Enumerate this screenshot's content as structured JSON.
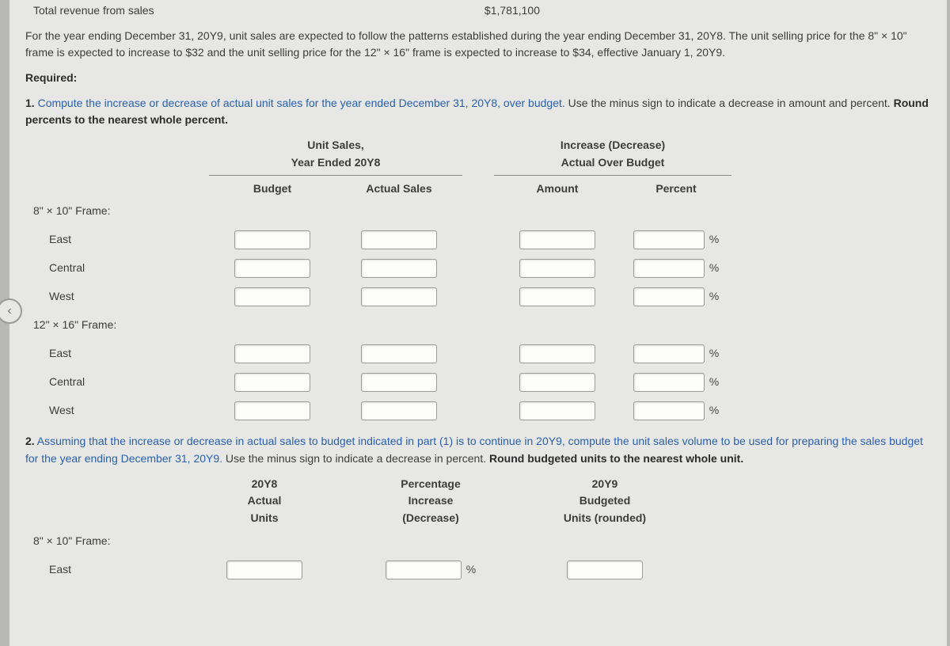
{
  "colors": {
    "page_bg": "#e7e8e6",
    "app_bg": "#b8b8b6",
    "text": "#3c3c3c",
    "link": "#2a5fb0",
    "input_border": "#9c9c9c",
    "input_bg": "#fdfdfc",
    "rule": "#8a8a8a"
  },
  "top": {
    "rev_label": "Total revenue from sales",
    "rev_value": "$1,781,100",
    "paragraph": "For the year ending December 31, 20Y9, unit sales are expected to follow the patterns established during the year ending December 31, 20Y8. The unit selling price for the 8\" × 10\" frame is expected to increase to $32 and the unit selling price for the 12\" × 16\" frame is expected to increase to $34, effective January 1, 20Y9.",
    "required_label": "Required:"
  },
  "q1": {
    "prompt_lead": "1.",
    "prompt_link": " Compute the increase or decrease of actual unit sales for the year ended December 31, 20Y8, over budget.",
    "prompt_tail": " Use the minus sign to indicate a decrease in amount and percent. ",
    "prompt_bold": "Round percents to the nearest whole percent.",
    "hdr_group_a_line1": "Unit Sales,",
    "hdr_group_a_line2": "Year Ended 20Y8",
    "hdr_group_b_line1": "Increase (Decrease)",
    "hdr_group_b_line2": "Actual Over Budget",
    "col_budget": "Budget",
    "col_actual": "Actual Sales",
    "col_amount": "Amount",
    "col_percent": "Percent",
    "groups": [
      {
        "title": "8\" × 10\" Frame:",
        "rows": [
          "East",
          "Central",
          "West"
        ]
      },
      {
        "title": "12\" × 16\" Frame:",
        "rows": [
          "East",
          "Central",
          "West"
        ]
      }
    ],
    "pct_suffix": "%"
  },
  "q2": {
    "prompt_lead": "2.",
    "prompt_link": "  Assuming that the increase or decrease in actual sales to budget indicated in part (1) is to continue in 20Y9, compute the unit sales volume to be used for preparing the sales budget for the year ending December 31, 20Y9.",
    "prompt_tail": " Use the minus sign to indicate a decrease in percent. ",
    "prompt_bold": "Round budgeted units to the nearest whole unit.",
    "col_actual_units_l1": "20Y8",
    "col_actual_units_l2": "Actual",
    "col_actual_units_l3": "Units",
    "col_pct_l1": "Percentage",
    "col_pct_l2": "Increase",
    "col_pct_l3": "(Decrease)",
    "col_bud_l1": "20Y9",
    "col_bud_l2": "Budgeted",
    "col_bud_l3": "Units (rounded)",
    "groups": [
      {
        "title": "8\" × 10\" Frame:",
        "rows": [
          "East"
        ]
      }
    ],
    "pct_suffix": "%"
  },
  "nav": {
    "back_glyph": "‹"
  }
}
